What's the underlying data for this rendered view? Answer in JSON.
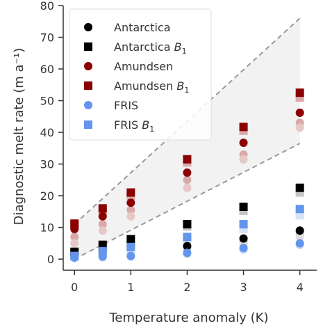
{
  "chart_data": {
    "type": "scatter",
    "title": "",
    "xlabel": "Temperature anomaly (K)",
    "ylabel": "Diagnostic melt rate (m a⁻¹)",
    "xlim": [
      -0.2,
      4.3
    ],
    "ylim": [
      -3.5,
      80
    ],
    "xticks": [
      0,
      1,
      2,
      3,
      4
    ],
    "yticks": [
      0,
      10,
      20,
      30,
      40,
      50,
      60,
      70,
      80
    ],
    "grid": false,
    "legend_position": "top-left",
    "envelope": {
      "lower": [
        [
          0,
          0
        ],
        [
          4,
          36.5
        ]
      ],
      "upper": [
        [
          0,
          11
        ],
        [
          4,
          76
        ]
      ],
      "fill_color": "#f2f2f2",
      "line_color": "#999999",
      "line_style": "dashed"
    },
    "series": [
      {
        "name": "Antarctica",
        "marker": "circle",
        "color": "#000000",
        "x": [
          0,
          0.5,
          1,
          2,
          3,
          4
        ],
        "values": [
          1.5,
          2.8,
          4.3,
          4.1,
          6.5,
          9.0
        ],
        "faded": [
          {
            "x": [
              0,
              0.5,
              1,
              2,
              3,
              4
            ],
            "values": [
              1.2,
              2.4,
              3.6,
              3.5,
              5.5,
              8.0
            ],
            "color": "#c4c4c4"
          },
          {
            "x": [
              0,
              0.5,
              1,
              2,
              3,
              4
            ],
            "values": [
              1.0,
              2.0,
              3.0,
              3.0,
              4.8,
              7.0
            ],
            "color": "#dedede"
          }
        ]
      },
      {
        "name": "Antarctica B1",
        "marker": "square",
        "color": "#000000",
        "x": [
          0,
          0.5,
          1,
          2,
          3,
          4
        ],
        "values": [
          2.3,
          4.5,
          6.3,
          11.0,
          16.5,
          22.5
        ],
        "faded": [
          {
            "x": [
              0,
              0.5,
              1,
              2,
              3,
              4
            ],
            "values": [
              2.0,
              4.0,
              5.8,
              10.3,
              15.2,
              21.0
            ],
            "color": "#c4c4c4"
          }
        ]
      },
      {
        "name": "Amundsen",
        "marker": "circle",
        "color": "#8b0000",
        "x": [
          0,
          0.5,
          1,
          2,
          3,
          4
        ],
        "values": [
          9.5,
          13.5,
          17.8,
          27.3,
          36.7,
          46.2
        ],
        "faded": [
          {
            "x": [
              0,
              0.5,
              1,
              2,
              3,
              4
            ],
            "values": [
              7.0,
              11.0,
              15.5,
              25.0,
              33.0,
              43.0
            ],
            "color": "#d9a9a9"
          },
          {
            "x": [
              0,
              0.5,
              1,
              2,
              3,
              4
            ],
            "values": [
              5.0,
              9.0,
              13.5,
              22.5,
              31.5,
              41.5
            ],
            "color": "#e6c8c8"
          }
        ]
      },
      {
        "name": "Amundsen B1",
        "marker": "square",
        "color": "#8b0000",
        "x": [
          0,
          0.5,
          1,
          2,
          3,
          4
        ],
        "values": [
          11.2,
          16.0,
          21.0,
          31.5,
          41.7,
          52.5
        ],
        "faded": [
          {
            "x": [
              0,
              0.5,
              1,
              2,
              3,
              4
            ],
            "values": [
              10.8,
              15.5,
              20.0,
              30.5,
              40.5,
              51.0
            ],
            "color": "#d9a9a9"
          }
        ]
      },
      {
        "name": "FRIS",
        "marker": "circle",
        "color": "#6495ed",
        "x": [
          0,
          0.5,
          1,
          2,
          3,
          4
        ],
        "values": [
          0.5,
          0.8,
          1.0,
          2.0,
          3.5,
          5.0
        ],
        "faded": [
          {
            "x": [
              0,
              0.5,
              1,
              2,
              3,
              4
            ],
            "values": [
              0.3,
              0.6,
              0.8,
              1.7,
              3.0,
              4.5
            ],
            "color": "#bcd0f5"
          }
        ]
      },
      {
        "name": "FRIS B1",
        "marker": "square",
        "color": "#6495ed",
        "x": [
          0,
          0.5,
          1,
          2,
          3,
          4
        ],
        "values": [
          1.0,
          2.5,
          3.8,
          7.0,
          11.0,
          15.8
        ],
        "faded": [
          {
            "x": [
              0,
              0.5,
              1,
              2,
              3,
              4
            ],
            "values": [
              0.8,
              2.2,
              3.3,
              6.3,
              10.0,
              14.5
            ],
            "color": "#bcd0f5"
          },
          {
            "x": [
              0,
              0.5,
              1,
              2,
              3,
              4
            ],
            "values": [
              0.6,
              2.0,
              3.0,
              6.0,
              9.5,
              13.8
            ],
            "color": "#d8e3f8"
          }
        ]
      }
    ],
    "legend": [
      {
        "label": "Antarctica",
        "sub": "",
        "marker": "circle",
        "color": "#000000"
      },
      {
        "label": "Antarctica ",
        "sub": "B",
        "subscript": "1",
        "marker": "square",
        "color": "#000000"
      },
      {
        "label": "Amundsen",
        "sub": "",
        "marker": "circle",
        "color": "#8b0000"
      },
      {
        "label": "Amundsen ",
        "sub": "B",
        "subscript": "1",
        "marker": "square",
        "color": "#8b0000"
      },
      {
        "label": "FRIS",
        "sub": "",
        "marker": "circle",
        "color": "#6495ed"
      },
      {
        "label": "FRIS ",
        "sub": "B",
        "subscript": "1",
        "marker": "square",
        "color": "#6495ed"
      }
    ]
  }
}
